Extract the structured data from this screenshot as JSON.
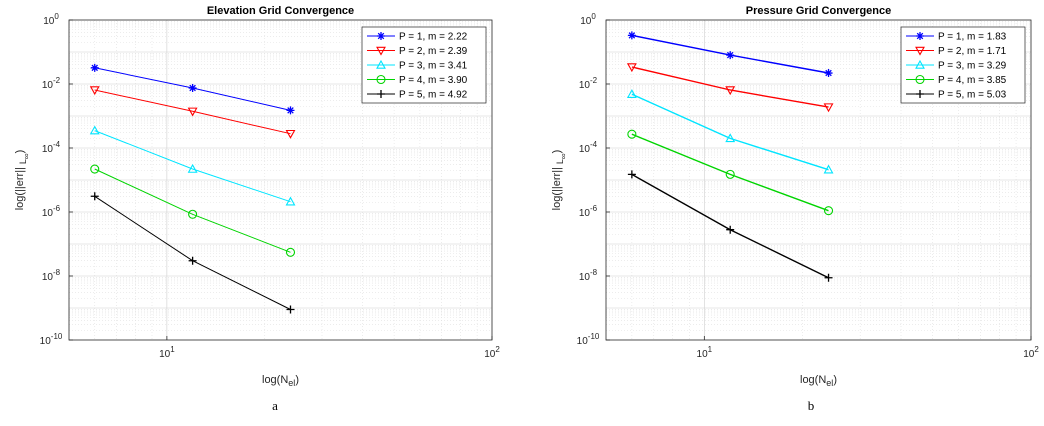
{
  "chart_data": [
    {
      "type": "line",
      "title": "Elevation Grid Convergence",
      "xlabel": "log(N",
      "xlabel_sub": "el",
      "xlabel_close": ")",
      "ylabel": "log(||err||",
      "ylabel_sub": "L",
      "ylabel_subsub": "∞",
      "ylabel_close": ")",
      "xscale": "log",
      "yscale": "log",
      "xlim": [
        5,
        100
      ],
      "ylim": [
        1e-10,
        1
      ],
      "x_ticks": [
        10,
        100
      ],
      "y_ticks": [
        1e-10,
        1e-08,
        1e-06,
        0.0001,
        0.01,
        1
      ],
      "grid": true,
      "legend_position": "top-right",
      "panel_label": "a",
      "x": [
        6,
        12,
        24
      ],
      "series": [
        {
          "name": "P = 1, m = 2.22",
          "color": "#0000ff",
          "marker": "star",
          "values": [
            0.032,
            0.0075,
            0.0015
          ]
        },
        {
          "name": "P = 2, m = 2.39",
          "color": "#ff0000",
          "marker": "triangle-down",
          "values": [
            0.0065,
            0.0014,
            0.00028
          ]
        },
        {
          "name": "P = 3, m = 3.41",
          "color": "#00e5ff",
          "marker": "triangle-up",
          "values": [
            0.00035,
            2.2e-05,
            2.1e-06
          ]
        },
        {
          "name": "P = 4, m = 3.90",
          "color": "#00d400",
          "marker": "circle",
          "values": [
            2.2e-05,
            8.5e-07,
            5.5e-08
          ]
        },
        {
          "name": "P = 5, m = 4.92",
          "color": "#000000",
          "marker": "plus",
          "values": [
            3.1e-06,
            3e-08,
            9e-10
          ]
        }
      ]
    },
    {
      "type": "line",
      "title": "Pressure Grid Convergence",
      "xlabel": "log(N",
      "xlabel_sub": "el",
      "xlabel_close": ")",
      "ylabel": "log(||err||",
      "ylabel_sub": "L",
      "ylabel_subsub": "∞",
      "ylabel_close": ")",
      "xscale": "log",
      "yscale": "log",
      "xlim": [
        5,
        100
      ],
      "ylim": [
        1e-10,
        1
      ],
      "x_ticks": [
        10,
        100
      ],
      "y_ticks": [
        1e-10,
        1e-08,
        1e-06,
        0.0001,
        0.01,
        1
      ],
      "grid": true,
      "legend_position": "top-right",
      "panel_label": "b",
      "x": [
        6,
        12,
        24
      ],
      "series": [
        {
          "name": "P = 1, m = 1.83",
          "color": "#0000ff",
          "marker": "star",
          "values": [
            0.33,
            0.08,
            0.022
          ]
        },
        {
          "name": "P = 2, m = 1.71",
          "color": "#ff0000",
          "marker": "triangle-down",
          "values": [
            0.034,
            0.0065,
            0.0019
          ]
        },
        {
          "name": "P = 3, m = 3.29",
          "color": "#00e5ff",
          "marker": "triangle-up",
          "values": [
            0.0048,
            0.0002,
            2.1e-05
          ]
        },
        {
          "name": "P = 4, m = 3.85",
          "color": "#00d400",
          "marker": "circle",
          "values": [
            0.00027,
            1.5e-05,
            1.1e-06
          ]
        },
        {
          "name": "P = 5, m = 5.03",
          "color": "#000000",
          "marker": "plus",
          "values": [
            1.5e-05,
            2.8e-07,
            8.8e-09
          ]
        }
      ]
    }
  ]
}
